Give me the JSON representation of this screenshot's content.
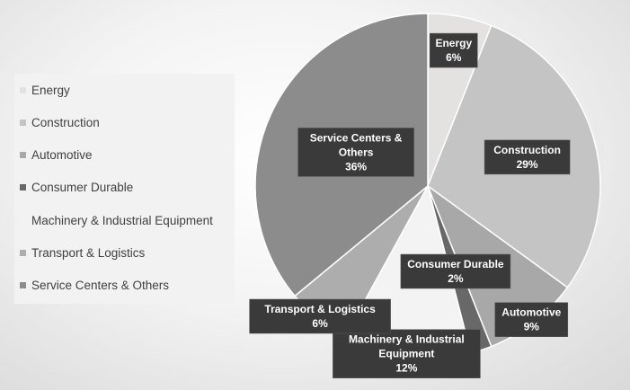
{
  "chart_data": {
    "type": "pie",
    "title": "",
    "legend_position": "left",
    "categories": [
      "Energy",
      "Construction",
      "Automotive",
      "Consumer Durable",
      "Machinery & Industrial Equipment",
      "Transport & Logistics",
      "Service Centers & Others"
    ],
    "values": [
      6,
      29,
      9,
      2,
      12,
      6,
      36
    ],
    "value_labels": [
      "6%",
      "29%",
      "9%",
      "2%",
      "12%",
      "6%",
      "36%"
    ],
    "colors": [
      "#e4e1e1",
      "#c4c4c4",
      "#a8a8a8",
      "#686868",
      "#f3f3f3",
      "#adadad",
      "#8c8c8c"
    ]
  }
}
